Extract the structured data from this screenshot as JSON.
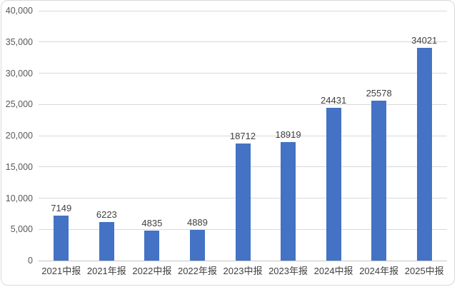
{
  "chart_data": {
    "type": "bar",
    "categories": [
      "2021中报",
      "2021年报",
      "2022中报",
      "2022年报",
      "2023中报",
      "2023年报",
      "2024中报",
      "2024年报",
      "2025中报"
    ],
    "values": [
      7149,
      6223,
      4835,
      4889,
      18712,
      18919,
      24431,
      25578,
      34021
    ],
    "data_labels": [
      "7149",
      "6223",
      "4835",
      "4889",
      "18712",
      "18919",
      "24431",
      "25578",
      "34021"
    ],
    "title": "",
    "xlabel": "",
    "ylabel": "",
    "ylim": [
      0,
      40000
    ],
    "ytick_step": 5000,
    "ytick_labels": [
      "0",
      "5,000",
      "10,000",
      "15,000",
      "20,000",
      "25,000",
      "30,000",
      "35,000",
      "40,000"
    ],
    "grid": true,
    "legend": "none",
    "bar_color": "#4472C4",
    "gridline_color": "#D9D9D9",
    "axis_line_color": "#C6C6C6",
    "data_label_color": "#404040",
    "tick_label_color": "#595959",
    "frame_border_color": "#D9D9D9"
  }
}
